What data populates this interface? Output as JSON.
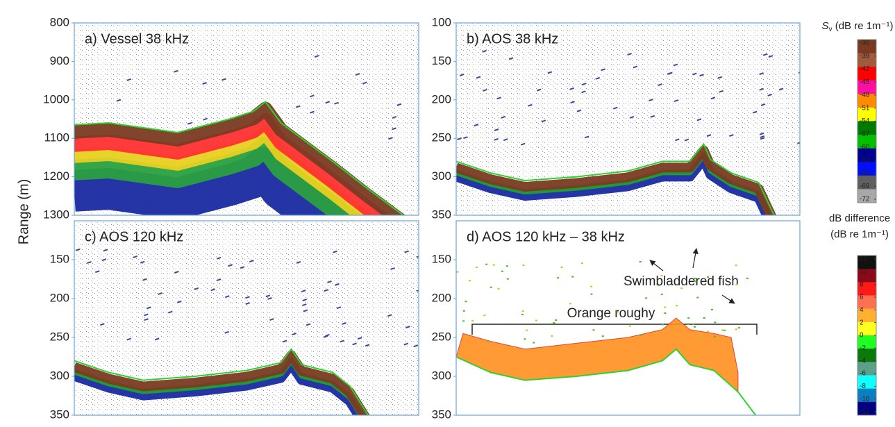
{
  "chart_data": [
    {
      "type": "echogram",
      "title": "a) Vessel 38 kHz",
      "ylim": [
        800,
        1300
      ],
      "yticks": [
        800,
        900,
        1000,
        1100,
        1200,
        1300
      ]
    },
    {
      "type": "echogram",
      "title": "b) AOS 38 kHz",
      "ylim": [
        100,
        350
      ],
      "yticks": [
        100,
        150,
        200,
        250,
        300,
        350
      ]
    },
    {
      "type": "echogram",
      "title": "c) AOS 120 kHz",
      "ylim": [
        100,
        350
      ],
      "yticks": [
        150,
        200,
        250,
        300,
        350
      ]
    },
    {
      "type": "difference",
      "title": "d) AOS 120 kHz – 38 kHz",
      "ylim": [
        100,
        350
      ],
      "yticks": [
        150,
        200,
        250,
        300,
        350
      ],
      "annotations": [
        "Swimbladdered fish",
        "Orange roughy"
      ]
    },
    {
      "type": "colorbar",
      "symbol": "S",
      "subscript": "v",
      "title": " (dB re 1m⁻¹)",
      "ticks": [
        -36,
        -39,
        -42,
        -45,
        -48,
        -51,
        -54,
        -57,
        -60,
        -63,
        -66,
        -69,
        -72
      ],
      "colors": [
        "#7a3a22",
        "#a05a3c",
        "#ff0000",
        "#ff10a0",
        "#ff8c00",
        "#ffff00",
        "#007a00",
        "#00c000",
        "#000090",
        "#0010ff",
        "#606060",
        "#a8a8a8"
      ]
    },
    {
      "type": "colorbar",
      "title_lines": [
        "dB difference",
        "(dB re 1m⁻¹)"
      ],
      "ticks": [
        12,
        10,
        8,
        6,
        4,
        2,
        0,
        -2,
        -4,
        -6,
        -8,
        -10,
        -12
      ],
      "colors": [
        "#111111",
        "#8b0a1a",
        "#ff1a1a",
        "#ff7050",
        "#ffb030",
        "#ffff20",
        "#20ff20",
        "#0a7a0a",
        "#5aa08a",
        "#10ffff",
        "#0a80c0",
        "#000080"
      ]
    }
  ],
  "y_label": "Range (m)"
}
